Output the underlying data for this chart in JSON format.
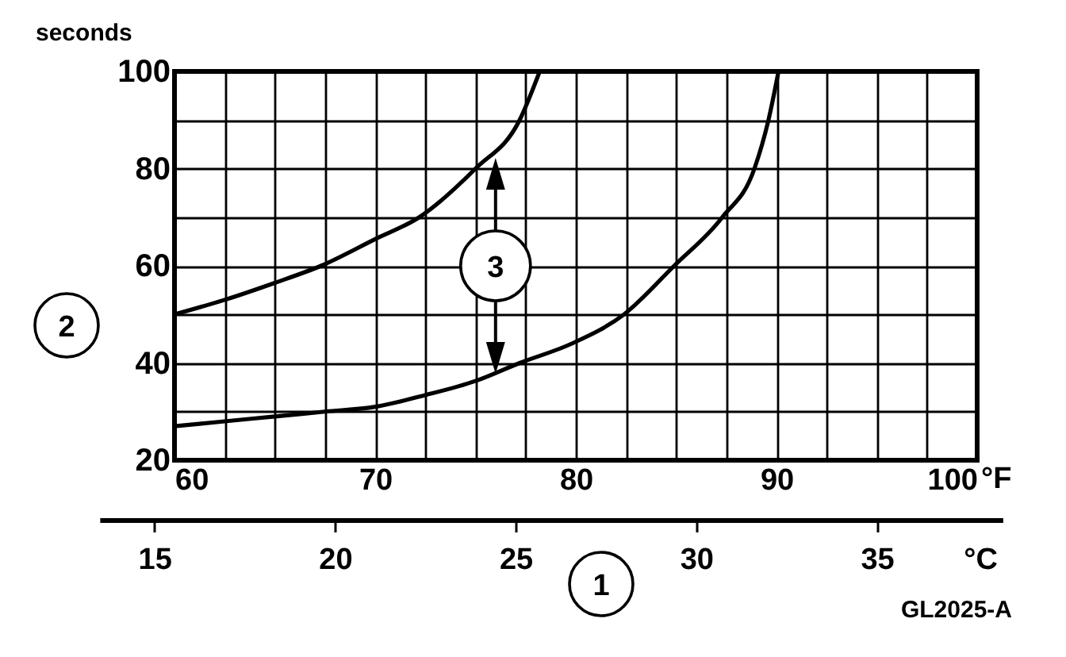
{
  "chart_data": {
    "type": "line",
    "ylabel": "seconds",
    "xlabel": "°F",
    "x2label": "°C",
    "xlim": [
      60,
      100
    ],
    "xticks": [
      60,
      {
        "value": 62.5,
        "label": null
      },
      {
        "value": 65,
        "label": null
      },
      {
        "value": 67.5,
        "label": null
      },
      70,
      {
        "value": 72.5,
        "label": null
      },
      {
        "value": 75,
        "label": null
      },
      {
        "value": 77.5,
        "label": null
      },
      80,
      {
        "value": 82.5,
        "label": null
      },
      {
        "value": 85,
        "label": null
      },
      {
        "value": 87.5,
        "label": null
      },
      90,
      {
        "value": 92.5,
        "label": null
      },
      {
        "value": 95,
        "label": null
      },
      {
        "value": 97.5,
        "label": null
      },
      100
    ],
    "ylim": [
      20,
      100
    ],
    "yticks": [
      20,
      {
        "value": 30,
        "label": null
      },
      40,
      {
        "value": 50,
        "label": null
      },
      60,
      {
        "value": 70,
        "label": null
      },
      80,
      {
        "value": 90,
        "label": null
      },
      100
    ],
    "x2lim": [
      13.5,
      38.5
    ],
    "x2ticks": [
      15,
      20,
      25,
      30,
      35
    ],
    "grid": true,
    "legend": false,
    "marker": "none",
    "line_style": "solid",
    "series": [
      {
        "color": "#000000",
        "x": [
          60,
          62.5,
          65,
          67.3,
          70,
          72.2,
          75,
          77.2,
          78.2
        ],
        "values": [
          50,
          53,
          56.5,
          60,
          65.5,
          70,
          80,
          90,
          100
        ]
      },
      {
        "color": "#000000",
        "x": [
          60,
          62.5,
          65,
          67.5,
          70,
          72.5,
          75,
          77.2,
          79.8,
          82.4,
          84.9,
          87.3,
          88.9,
          89.6,
          90.1
        ],
        "values": [
          27,
          28,
          29,
          30,
          31,
          33.4,
          36.3,
          40,
          44,
          50,
          60,
          70,
          80,
          90,
          100
        ]
      }
    ],
    "annotations": [
      "1",
      "2",
      {
        "text": "3",
        "x": 76,
        "y": 60
      },
      "GL2025-A"
    ]
  }
}
